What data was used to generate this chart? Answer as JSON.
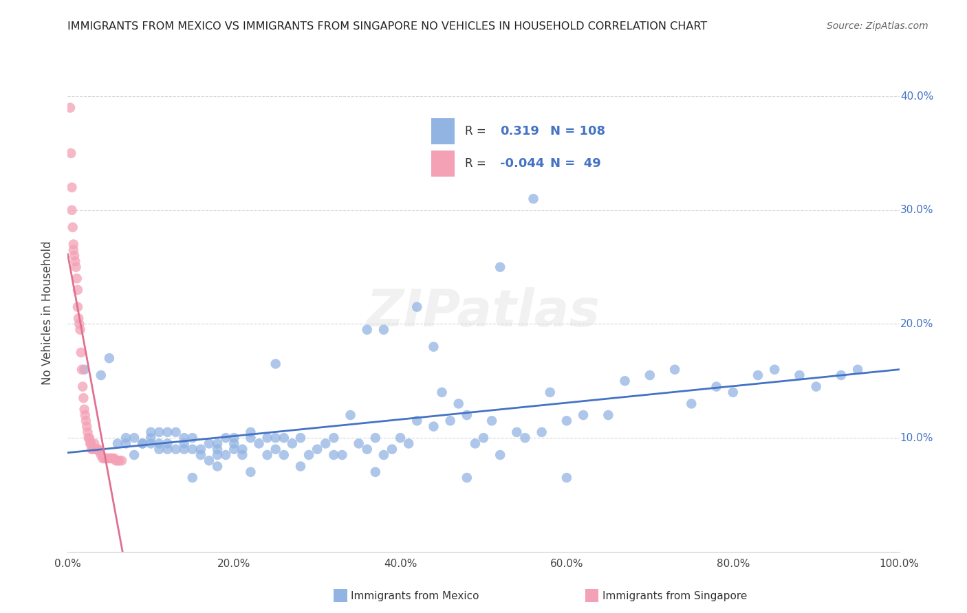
{
  "title": "IMMIGRANTS FROM MEXICO VS IMMIGRANTS FROM SINGAPORE NO VEHICLES IN HOUSEHOLD CORRELATION CHART",
  "source": "Source: ZipAtlas.com",
  "ylabel": "No Vehicles in Household",
  "xlim": [
    0,
    1.0
  ],
  "ylim": [
    0,
    0.42
  ],
  "xtick_labels": [
    "0.0%",
    "20.0%",
    "40.0%",
    "60.0%",
    "80.0%",
    "100.0%"
  ],
  "ytick_labels": [
    "10.0%",
    "20.0%",
    "30.0%",
    "40.0%"
  ],
  "ytick_values": [
    0.1,
    0.2,
    0.3,
    0.4
  ],
  "xtick_values": [
    0.0,
    0.2,
    0.4,
    0.6,
    0.8,
    1.0
  ],
  "color_mexico": "#92b4e3",
  "color_singapore": "#f4a0b5",
  "color_line_mexico": "#4472c4",
  "color_line_singapore": "#e07090",
  "watermark": "ZIPatlas",
  "legend1_label": "Immigrants from Mexico",
  "legend2_label": "Immigrants from Singapore",
  "r1": "0.319",
  "n1": "108",
  "r2": "-0.044",
  "n2": "49",
  "mexico_x": [
    0.02,
    0.04,
    0.05,
    0.06,
    0.07,
    0.07,
    0.08,
    0.08,
    0.09,
    0.09,
    0.1,
    0.1,
    0.1,
    0.11,
    0.11,
    0.11,
    0.12,
    0.12,
    0.12,
    0.13,
    0.13,
    0.14,
    0.14,
    0.14,
    0.15,
    0.15,
    0.16,
    0.16,
    0.17,
    0.17,
    0.18,
    0.18,
    0.18,
    0.19,
    0.19,
    0.2,
    0.2,
    0.2,
    0.21,
    0.21,
    0.22,
    0.22,
    0.23,
    0.24,
    0.24,
    0.25,
    0.25,
    0.26,
    0.26,
    0.27,
    0.28,
    0.29,
    0.3,
    0.31,
    0.32,
    0.33,
    0.34,
    0.35,
    0.36,
    0.37,
    0.38,
    0.39,
    0.4,
    0.41,
    0.42,
    0.44,
    0.45,
    0.46,
    0.47,
    0.48,
    0.49,
    0.5,
    0.51,
    0.52,
    0.54,
    0.55,
    0.57,
    0.58,
    0.6,
    0.62,
    0.65,
    0.67,
    0.7,
    0.73,
    0.75,
    0.78,
    0.8,
    0.83,
    0.85,
    0.88,
    0.9,
    0.93,
    0.95,
    0.52,
    0.42,
    0.36,
    0.48,
    0.6,
    0.37,
    0.22,
    0.28,
    0.18,
    0.25,
    0.32,
    0.44,
    0.56,
    0.38,
    0.15
  ],
  "mexico_y": [
    0.16,
    0.155,
    0.17,
    0.095,
    0.1,
    0.095,
    0.1,
    0.085,
    0.095,
    0.095,
    0.095,
    0.1,
    0.105,
    0.105,
    0.095,
    0.09,
    0.095,
    0.09,
    0.105,
    0.09,
    0.105,
    0.095,
    0.09,
    0.1,
    0.09,
    0.1,
    0.09,
    0.085,
    0.095,
    0.08,
    0.085,
    0.09,
    0.095,
    0.085,
    0.1,
    0.09,
    0.095,
    0.1,
    0.085,
    0.09,
    0.105,
    0.1,
    0.095,
    0.085,
    0.1,
    0.09,
    0.1,
    0.1,
    0.085,
    0.095,
    0.1,
    0.085,
    0.09,
    0.095,
    0.1,
    0.085,
    0.12,
    0.095,
    0.09,
    0.1,
    0.085,
    0.09,
    0.1,
    0.095,
    0.115,
    0.11,
    0.14,
    0.115,
    0.13,
    0.12,
    0.095,
    0.1,
    0.115,
    0.085,
    0.105,
    0.1,
    0.105,
    0.14,
    0.115,
    0.12,
    0.12,
    0.15,
    0.155,
    0.16,
    0.13,
    0.145,
    0.14,
    0.155,
    0.16,
    0.155,
    0.145,
    0.155,
    0.16,
    0.25,
    0.215,
    0.195,
    0.065,
    0.065,
    0.07,
    0.07,
    0.075,
    0.075,
    0.165,
    0.085,
    0.18,
    0.31,
    0.195,
    0.065
  ],
  "singapore_x": [
    0.003,
    0.004,
    0.005,
    0.005,
    0.006,
    0.007,
    0.007,
    0.008,
    0.009,
    0.01,
    0.011,
    0.012,
    0.012,
    0.013,
    0.014,
    0.015,
    0.016,
    0.017,
    0.018,
    0.019,
    0.02,
    0.021,
    0.022,
    0.023,
    0.024,
    0.025,
    0.026,
    0.027,
    0.028,
    0.029,
    0.03,
    0.032,
    0.034,
    0.035,
    0.037,
    0.038,
    0.04,
    0.042,
    0.044,
    0.046,
    0.048,
    0.05,
    0.052,
    0.054,
    0.056,
    0.058,
    0.06,
    0.062,
    0.065
  ],
  "singapore_y": [
    0.39,
    0.35,
    0.32,
    0.3,
    0.285,
    0.27,
    0.265,
    0.26,
    0.255,
    0.25,
    0.24,
    0.23,
    0.215,
    0.205,
    0.2,
    0.195,
    0.175,
    0.16,
    0.145,
    0.135,
    0.125,
    0.12,
    0.115,
    0.11,
    0.105,
    0.1,
    0.1,
    0.095,
    0.095,
    0.09,
    0.09,
    0.095,
    0.09,
    0.09,
    0.09,
    0.088,
    0.085,
    0.082,
    0.082,
    0.082,
    0.082,
    0.082,
    0.082,
    0.082,
    0.082,
    0.08,
    0.08,
    0.08,
    0.08
  ]
}
